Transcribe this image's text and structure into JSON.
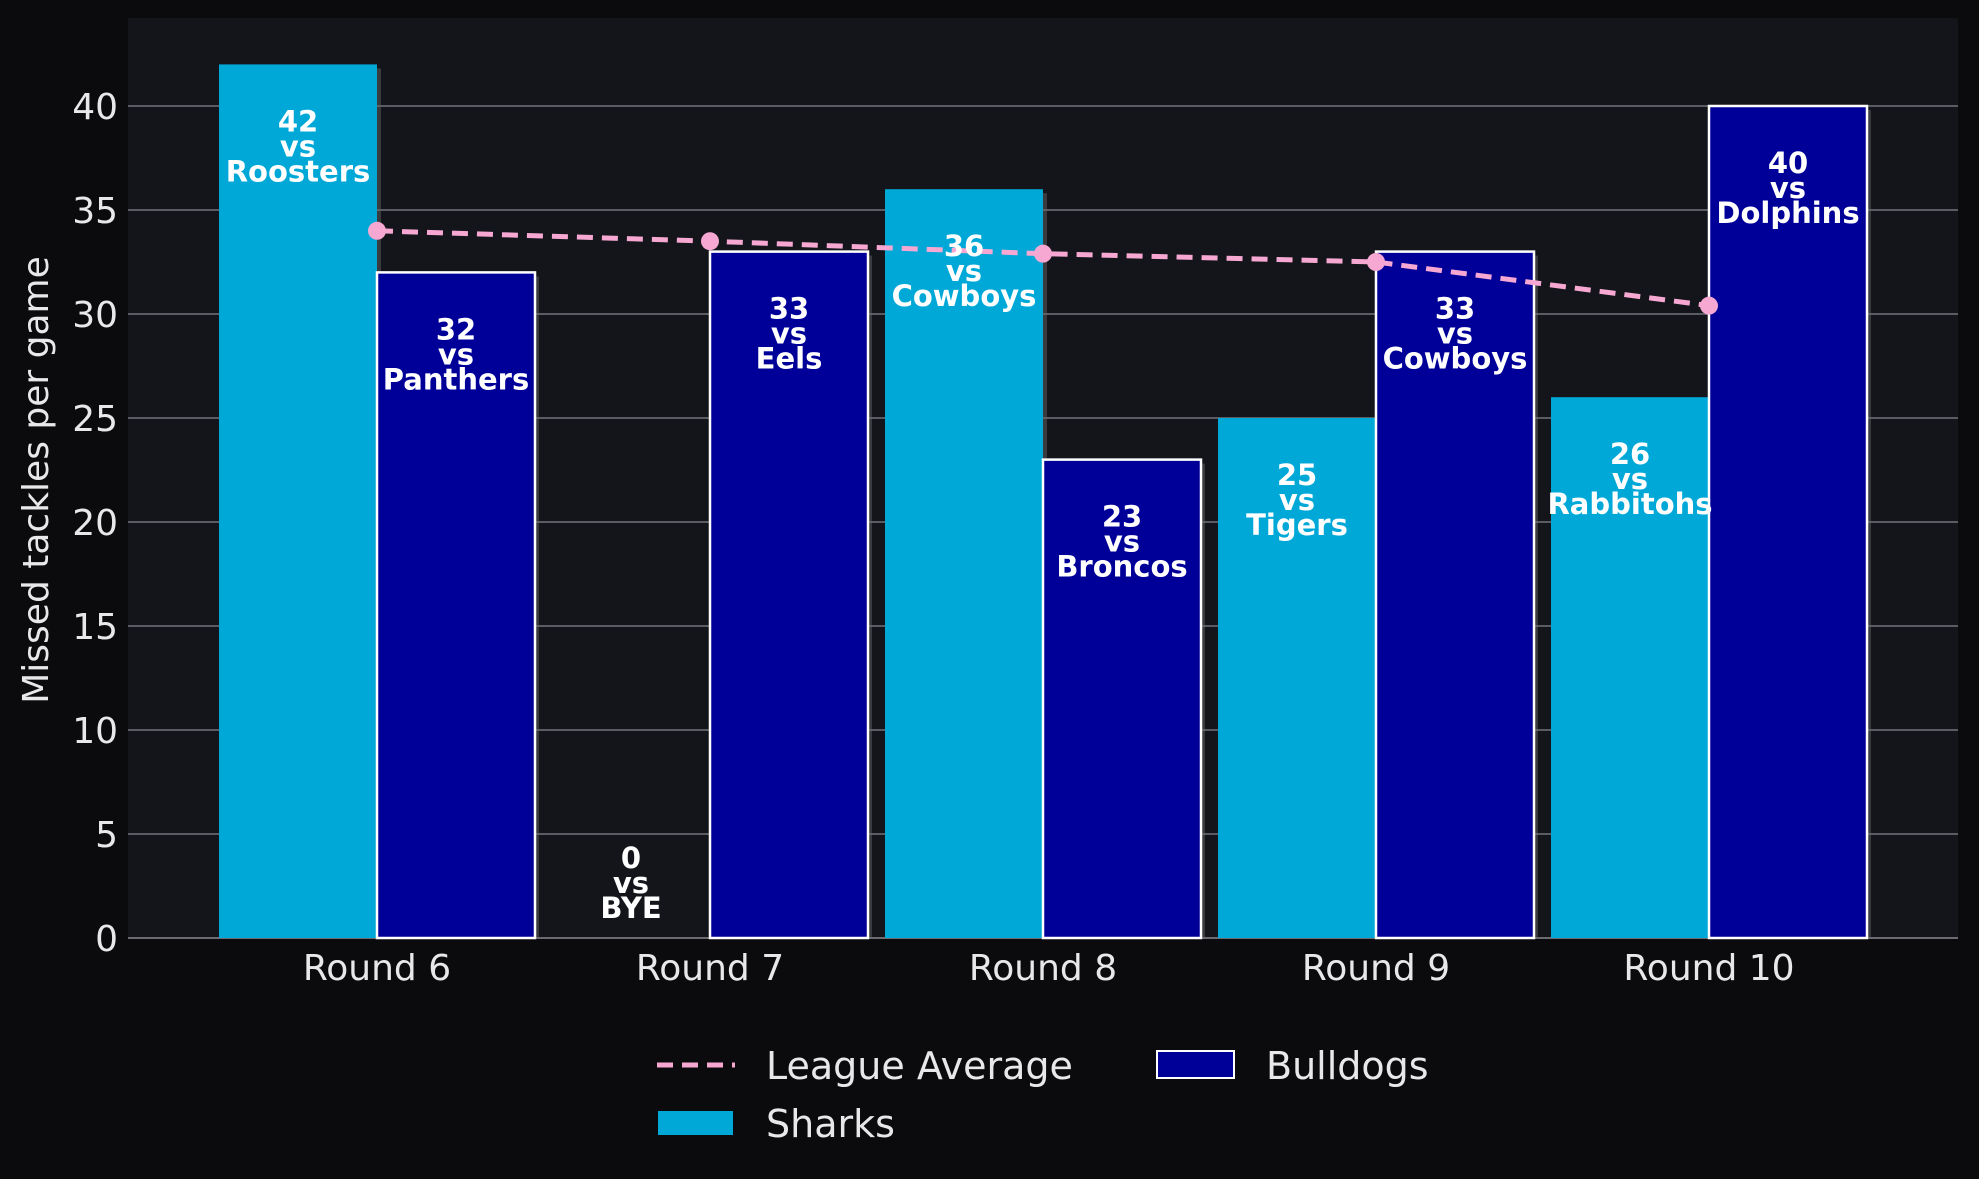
{
  "chart_data": {
    "type": "bar",
    "categories": [
      "Round 6",
      "Round 7",
      "Round 8",
      "Round 9",
      "Round 10"
    ],
    "ylabel": "Missed tackles per game",
    "xlabel": "",
    "ylim": [
      0,
      44
    ],
    "yticks": [
      0,
      5,
      10,
      15,
      20,
      25,
      30,
      35,
      40
    ],
    "grid": "horizontal",
    "series": [
      {
        "name": "Sharks",
        "color": "#00a8d8",
        "values": [
          42,
          0,
          36,
          25,
          26
        ],
        "opponents": [
          "Roosters",
          "BYE",
          "Cowboys",
          "Tigers",
          "Rabbitohs"
        ]
      },
      {
        "name": "Bulldogs",
        "color": "#000099",
        "values": [
          32,
          33,
          23,
          33,
          40
        ],
        "opponents": [
          "Panthers",
          "Eels",
          "Broncos",
          "Cowboys",
          "Dolphins"
        ]
      }
    ],
    "line": {
      "name": "League Average",
      "color": "#f7a8d2",
      "style": "dashed",
      "values": [
        34,
        33.5,
        32.9,
        32.5,
        30.4
      ]
    },
    "vs_text": "vs",
    "legend_placement": "bottom-center"
  }
}
